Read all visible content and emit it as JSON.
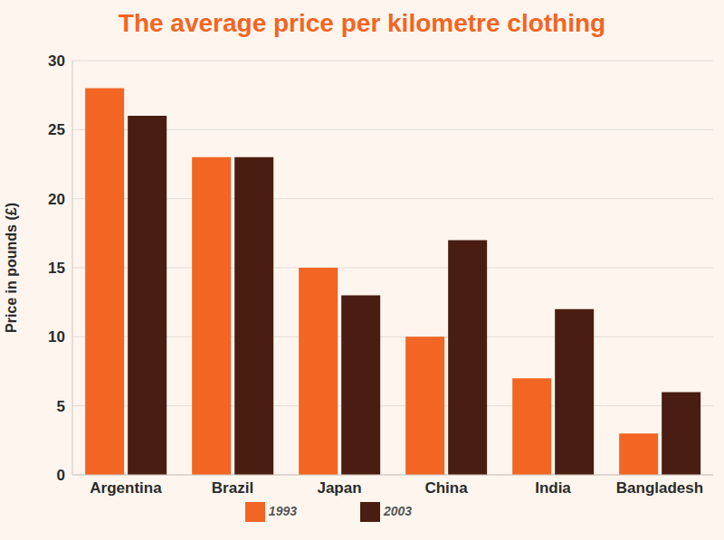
{
  "chart_data": {
    "type": "bar",
    "title": "The average price per kilometre clothing",
    "y_label": "Price in pounds (£)",
    "categories": [
      "Argentina",
      "Brazil",
      "Japan",
      "China",
      "India",
      "Bangladesh"
    ],
    "series": [
      {
        "name": "1993",
        "color": "#f26522",
        "values": [
          28,
          23,
          15,
          10,
          7,
          3
        ]
      },
      {
        "name": "2003",
        "color": "#4a1d13",
        "values": [
          26,
          23,
          13,
          17,
          12,
          6
        ]
      }
    ],
    "ylim": [
      0,
      30
    ],
    "yticks": [
      0,
      5,
      10,
      15,
      20,
      25,
      30
    ],
    "grid": true,
    "legend": "bottom"
  }
}
